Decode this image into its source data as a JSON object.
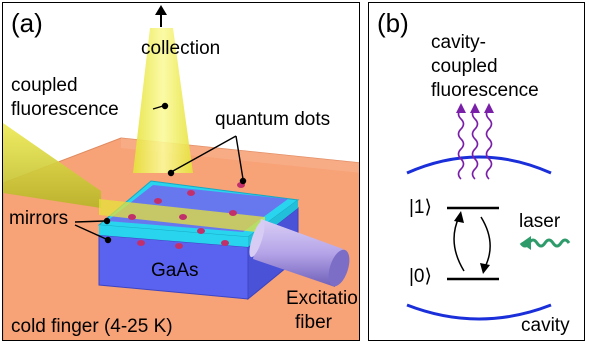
{
  "panel_a": {
    "letter": "(a)",
    "collection": "collection",
    "coupled_fluorescence": [
      "coupled",
      "fluorescence"
    ],
    "quantum_dots": "quantum dots",
    "mirrors": "mirrors",
    "gaas": "GaAs",
    "excitation_fiber": [
      "Excitation",
      "fiber"
    ],
    "cold_finger": "cold finger (4-25 K)"
  },
  "panel_b": {
    "letter": "(b)",
    "cavity_coupled_fluorescence": [
      "cavity-",
      "coupled",
      "fluorescence"
    ],
    "level_1": "|1⟩",
    "level_0": "|0⟩",
    "laser": "laser",
    "cavity": "cavity"
  },
  "colors": {
    "cold_finger": "#f7a277",
    "gaas": "#5a63f0",
    "mirror": "#29d4ee",
    "beam": "#f2f060",
    "fiber": "#b8a8e6",
    "dot": "#c2306b",
    "cavity_mirror": "#1a2fd9",
    "fluorescence": "#7a1fa8",
    "laser": "#2e9b6a"
  }
}
